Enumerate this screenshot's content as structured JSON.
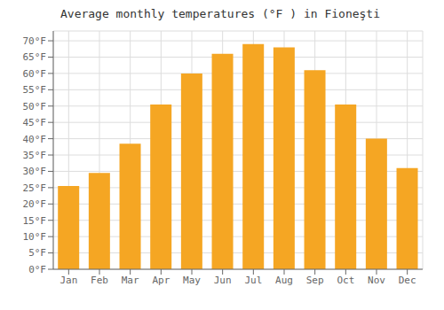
{
  "chart_data": {
    "type": "bar",
    "title": "Average monthly temperatures (°F ) in Fioneşti",
    "categories": [
      "Jan",
      "Feb",
      "Mar",
      "Apr",
      "May",
      "Jun",
      "Jul",
      "Aug",
      "Sep",
      "Oct",
      "Nov",
      "Dec"
    ],
    "values": [
      25.5,
      29.5,
      38.5,
      50.5,
      60.0,
      66.0,
      69.0,
      68.0,
      61.0,
      50.5,
      40.0,
      31.0
    ],
    "color": "#F5A623",
    "ylim": [
      0,
      73
    ],
    "yticks": [
      {
        "value": 0,
        "label": "0°F"
      },
      {
        "value": 5,
        "label": "5°F"
      },
      {
        "value": 10,
        "label": "10°F"
      },
      {
        "value": 15,
        "label": "15°F"
      },
      {
        "value": 20,
        "label": "20°F"
      },
      {
        "value": 25,
        "label": "25°F"
      },
      {
        "value": 30,
        "label": "30°F"
      },
      {
        "value": 35,
        "label": "35°F"
      },
      {
        "value": 40,
        "label": "40°F"
      },
      {
        "value": 45,
        "label": "45°F"
      },
      {
        "value": 50,
        "label": "50°F"
      },
      {
        "value": 55,
        "label": "55°F"
      },
      {
        "value": 60,
        "label": "60°F"
      },
      {
        "value": 65,
        "label": "65°F"
      },
      {
        "value": 70,
        "label": "70°F"
      }
    ],
    "grid": true
  }
}
